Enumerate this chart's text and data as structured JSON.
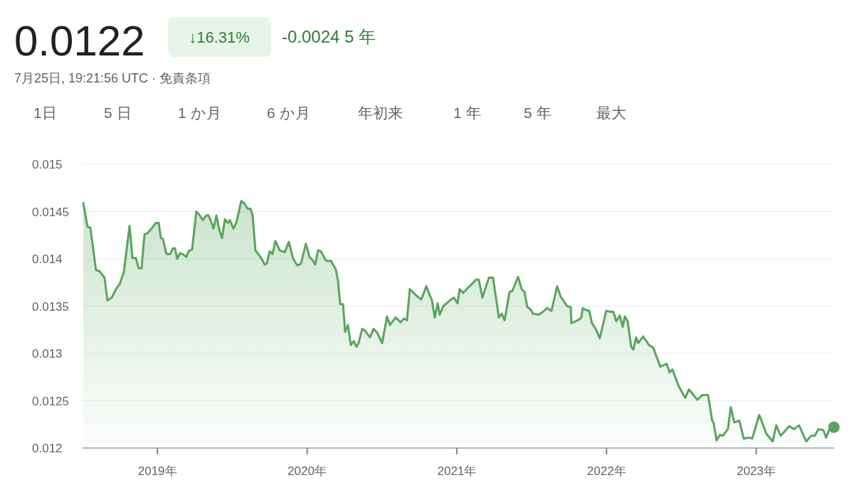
{
  "chart_data": {
    "type": "area",
    "title": "0.0122",
    "subtitle": "7月25日, 19:21:56 UTC · 免責条項",
    "annotations": [
      "↓16.31%",
      "-0.0024 5 年",
      "1日",
      "5 日",
      "1 か月",
      "6 か月",
      "年初来",
      "1 年",
      "5 年",
      "最大"
    ],
    "xlim": [
      2018.5,
      2023.52
    ],
    "xticks": [
      {
        "value": 2019,
        "label": "2019年"
      },
      {
        "value": 2020,
        "label": "2020年"
      },
      {
        "value": 2021,
        "label": "2021年"
      },
      {
        "value": 2022,
        "label": "2022年"
      },
      {
        "value": 2023,
        "label": "2023年"
      }
    ],
    "ylim": [
      0.012,
      0.015
    ],
    "yticks": [
      0.012,
      0.0125,
      0.013,
      0.0135,
      0.014,
      0.0145,
      0.015
    ],
    "grid": "y",
    "series": [
      {
        "color": "#58a65b",
        "x": [
          2018.505,
          2018.533,
          2018.552,
          2018.59,
          2018.614,
          2018.647,
          2018.666,
          2018.695,
          2018.723,
          2018.747,
          2018.776,
          2018.814,
          2018.833,
          2018.856,
          2018.875,
          2018.894,
          2018.914,
          2018.933,
          2018.961,
          2018.99,
          2019.009,
          2019.023,
          2019.037,
          2019.061,
          2019.085,
          2019.104,
          2019.118,
          2019.132,
          2019.151,
          2019.17,
          2019.194,
          2019.208,
          2019.232,
          2019.26,
          2019.279,
          2019.303,
          2019.327,
          2019.341,
          2019.36,
          2019.375,
          2019.394,
          2019.413,
          2019.432,
          2019.451,
          2019.47,
          2019.484,
          2019.508,
          2019.527,
          2019.56,
          2019.579,
          2019.603,
          2019.622,
          2019.636,
          2019.655,
          2019.693,
          2019.717,
          2019.731,
          2019.75,
          2019.769,
          2019.788,
          2019.817,
          2019.85,
          2019.878,
          2019.907,
          2019.935,
          2019.959,
          2019.992,
          2020.016,
          2020.035,
          2020.054,
          2020.073,
          2020.092,
          2020.126,
          2020.159,
          2020.192,
          2020.206,
          2020.221,
          2020.24,
          2020.254,
          2020.273,
          2020.292,
          2020.311,
          2020.33,
          2020.344,
          2020.368,
          2020.387,
          2020.42,
          2020.444,
          2020.468,
          2020.501,
          2020.534,
          2020.553,
          2020.591,
          2020.625,
          2020.648,
          2020.667,
          2020.686,
          2020.724,
          2020.762,
          2020.796,
          2020.834,
          2020.853,
          2020.872,
          2020.886,
          2020.91,
          2020.953,
          2020.981,
          2021.005,
          2021.019,
          2021.043,
          2021.071,
          2021.105,
          2021.128,
          2021.147,
          2021.171,
          2021.214,
          2021.242,
          2021.281,
          2021.3,
          2021.319,
          2021.352,
          2021.371,
          2021.409,
          2021.433,
          2021.452,
          2021.471,
          2021.49,
          2021.509,
          2021.547,
          2021.575,
          2021.604,
          2021.632,
          2021.67,
          2021.694,
          2021.737,
          2021.761,
          2021.765,
          2021.808,
          2021.832,
          2021.841,
          2021.86,
          2021.884,
          2021.903,
          2021.927,
          2021.955,
          2021.998,
          2022.027,
          2022.046,
          2022.065,
          2022.089,
          2022.108,
          2022.122,
          2022.141,
          2022.165,
          2022.179,
          2022.198,
          2022.212,
          2022.245,
          2022.283,
          2022.312,
          2022.359,
          2022.402,
          2022.421,
          2022.44,
          2022.483,
          2022.526,
          2022.55,
          2022.607,
          2022.64,
          2022.678,
          2022.706,
          2022.716,
          2022.735,
          2022.759,
          2022.778,
          2022.811,
          2022.83,
          2022.854,
          2022.887,
          2022.916,
          2022.954,
          2022.973,
          2023.02,
          2023.068,
          2023.11,
          2023.134,
          2023.163,
          2023.22,
          2023.253,
          2023.286,
          2023.334,
          2023.367,
          2023.391,
          2023.415,
          2023.448,
          2023.467,
          2023.486,
          2023.519
        ],
        "values": [
          0.01459,
          0.01434,
          0.01433,
          0.01388,
          0.01387,
          0.0138,
          0.01356,
          0.01359,
          0.01368,
          0.01373,
          0.01386,
          0.01435,
          0.01401,
          0.01401,
          0.0139,
          0.0139,
          0.01426,
          0.01427,
          0.01432,
          0.01438,
          0.01438,
          0.01422,
          0.01421,
          0.01405,
          0.01405,
          0.01411,
          0.01411,
          0.014,
          0.01406,
          0.01405,
          0.01402,
          0.01408,
          0.0141,
          0.0145,
          0.01447,
          0.01441,
          0.01446,
          0.01446,
          0.01439,
          0.01432,
          0.01446,
          0.01431,
          0.01422,
          0.01442,
          0.01438,
          0.01441,
          0.01432,
          0.01438,
          0.01461,
          0.01459,
          0.01453,
          0.01453,
          0.01446,
          0.01409,
          0.01401,
          0.01394,
          0.01395,
          0.01408,
          0.01405,
          0.01419,
          0.01409,
          0.01407,
          0.01418,
          0.014,
          0.01393,
          0.01395,
          0.01416,
          0.01402,
          0.01399,
          0.01394,
          0.01409,
          0.01408,
          0.01398,
          0.01398,
          0.01389,
          0.01377,
          0.01352,
          0.01352,
          0.01323,
          0.0133,
          0.01309,
          0.01313,
          0.01307,
          0.01311,
          0.01326,
          0.01324,
          0.01317,
          0.01326,
          0.01322,
          0.01311,
          0.01339,
          0.0133,
          0.01338,
          0.01333,
          0.01337,
          0.01335,
          0.01368,
          0.01362,
          0.01357,
          0.01371,
          0.01356,
          0.01338,
          0.01353,
          0.01341,
          0.0135,
          0.01356,
          0.01359,
          0.01353,
          0.01368,
          0.01364,
          0.01369,
          0.01374,
          0.01378,
          0.01378,
          0.01359,
          0.0138,
          0.0138,
          0.01338,
          0.01342,
          0.01335,
          0.01365,
          0.01366,
          0.01381,
          0.01368,
          0.01365,
          0.01349,
          0.01347,
          0.01342,
          0.01341,
          0.01344,
          0.01348,
          0.01345,
          0.01371,
          0.0136,
          0.0135,
          0.01349,
          0.01332,
          0.01335,
          0.01338,
          0.01348,
          0.01346,
          0.01345,
          0.01332,
          0.01326,
          0.01316,
          0.01345,
          0.01344,
          0.01344,
          0.01334,
          0.0134,
          0.01328,
          0.01339,
          0.01334,
          0.01307,
          0.01304,
          0.01317,
          0.01311,
          0.01318,
          0.01309,
          0.01306,
          0.01286,
          0.01289,
          0.0128,
          0.01283,
          0.01265,
          0.01253,
          0.01262,
          0.01251,
          0.01256,
          0.01256,
          0.01229,
          0.01226,
          0.01208,
          0.01214,
          0.01213,
          0.0122,
          0.01243,
          0.01227,
          0.01229,
          0.0121,
          0.01211,
          0.0121,
          0.01235,
          0.01215,
          0.01207,
          0.01224,
          0.01213,
          0.01223,
          0.0122,
          0.01224,
          0.01207,
          0.01213,
          0.01213,
          0.0122,
          0.01219,
          0.01211,
          0.01219,
          0.01222
        ]
      }
    ]
  }
}
